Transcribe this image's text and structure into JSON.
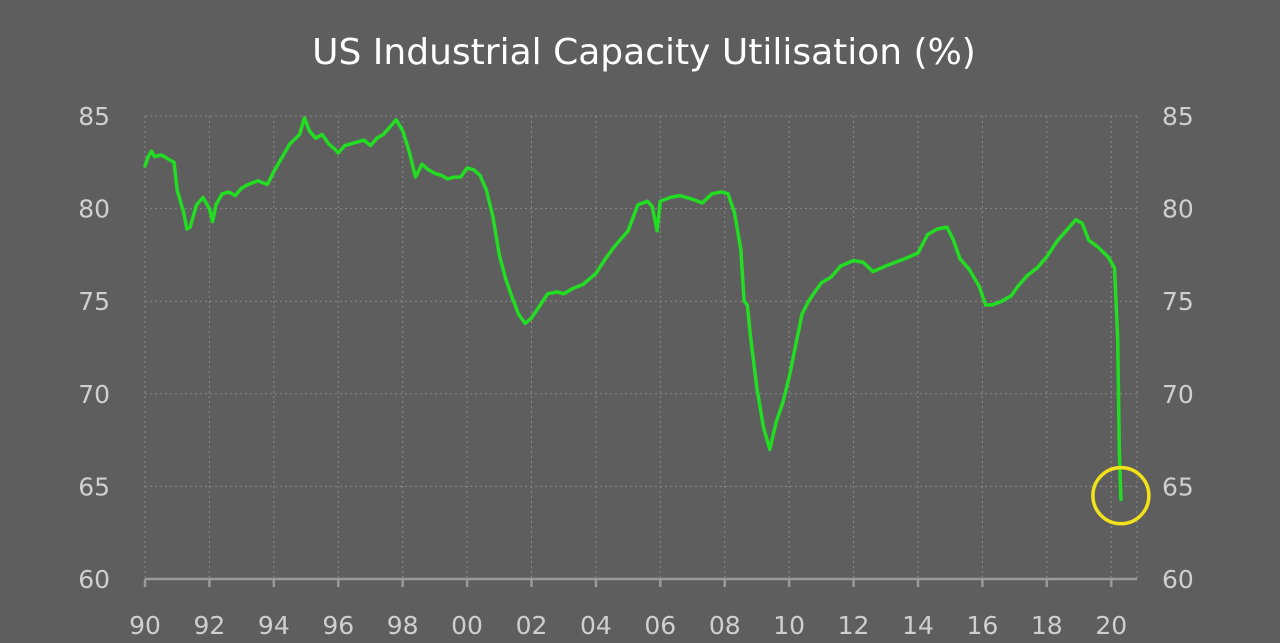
{
  "chart_data": {
    "type": "line",
    "title": "US Industrial Capacity Utilisation (%)",
    "xlabel": "",
    "ylabel": "",
    "xlim": [
      1990,
      2020.8
    ],
    "ylim": [
      60,
      85
    ],
    "x_tick_values": [
      1990,
      1992,
      1994,
      1996,
      1998,
      2000,
      2002,
      2004,
      2006,
      2008,
      2010,
      2012,
      2014,
      2016,
      2018,
      2020
    ],
    "x_tick_labels": [
      "90",
      "92",
      "94",
      "96",
      "98",
      "00",
      "02",
      "04",
      "06",
      "08",
      "10",
      "12",
      "14",
      "16",
      "18",
      "20"
    ],
    "y_ticks": [
      60,
      65,
      70,
      75,
      80,
      85
    ],
    "grid": true,
    "y_axis_labels_both_sides": true,
    "series": [
      {
        "color": "#22dd22",
        "x": [
          1990.0,
          1990.1,
          1990.2,
          1990.3,
          1990.5,
          1990.7,
          1990.9,
          1991.0,
          1991.2,
          1991.3,
          1991.4,
          1991.6,
          1991.8,
          1992.0,
          1992.1,
          1992.2,
          1992.4,
          1992.6,
          1992.8,
          1993.0,
          1993.2,
          1993.5,
          1993.8,
          1994.0,
          1994.2,
          1994.5,
          1994.8,
          1994.95,
          1995.1,
          1995.3,
          1995.5,
          1995.7,
          1995.9,
          1996.0,
          1996.2,
          1996.4,
          1996.6,
          1996.8,
          1997.0,
          1997.2,
          1997.4,
          1997.6,
          1997.8,
          1998.0,
          1998.2,
          1998.4,
          1998.6,
          1998.8,
          1999.0,
          1999.2,
          1999.4,
          1999.6,
          1999.8,
          2000.0,
          2000.2,
          2000.4,
          2000.6,
          2000.8,
          2001.0,
          2001.2,
          2001.4,
          2001.6,
          2001.8,
          2002.0,
          2002.2,
          2002.5,
          2002.8,
          2003.0,
          2003.3,
          2003.6,
          2004.0,
          2004.3,
          2004.6,
          2005.0,
          2005.3,
          2005.6,
          2005.75,
          2005.9,
          2006.0,
          2006.3,
          2006.6,
          2007.0,
          2007.3,
          2007.6,
          2007.9,
          2008.1,
          2008.3,
          2008.5,
          2008.6,
          2008.7,
          2008.8,
          2009.0,
          2009.2,
          2009.4,
          2009.6,
          2009.8,
          2010.0,
          2010.2,
          2010.4,
          2010.6,
          2010.8,
          2011.0,
          2011.3,
          2011.6,
          2012.0,
          2012.3,
          2012.6,
          2013.0,
          2013.3,
          2013.6,
          2014.0,
          2014.3,
          2014.6,
          2014.9,
          2015.1,
          2015.3,
          2015.6,
          2015.9,
          2016.1,
          2016.3,
          2016.6,
          2016.9,
          2017.1,
          2017.4,
          2017.7,
          2018.0,
          2018.3,
          2018.6,
          2018.9,
          2019.1,
          2019.3,
          2019.6,
          2019.9,
          2020.0,
          2020.1,
          2020.2,
          2020.25,
          2020.3
        ],
        "values": [
          82.3,
          82.8,
          83.1,
          82.8,
          82.9,
          82.7,
          82.5,
          81.0,
          79.8,
          78.9,
          79.0,
          80.2,
          80.6,
          80.0,
          79.3,
          80.2,
          80.8,
          80.9,
          80.7,
          81.1,
          81.3,
          81.5,
          81.3,
          82.0,
          82.6,
          83.5,
          84.0,
          84.9,
          84.2,
          83.8,
          84.0,
          83.5,
          83.2,
          83.0,
          83.4,
          83.5,
          83.6,
          83.7,
          83.4,
          83.8,
          84.0,
          84.4,
          84.8,
          84.2,
          83.1,
          81.7,
          82.4,
          82.1,
          81.9,
          81.8,
          81.6,
          81.7,
          81.7,
          82.2,
          82.1,
          81.8,
          81.0,
          79.6,
          77.5,
          76.2,
          75.2,
          74.3,
          73.8,
          74.1,
          74.6,
          75.4,
          75.5,
          75.4,
          75.7,
          75.9,
          76.5,
          77.3,
          78.0,
          78.8,
          80.2,
          80.4,
          80.1,
          78.8,
          80.4,
          80.6,
          80.7,
          80.5,
          80.3,
          80.8,
          80.9,
          80.8,
          79.8,
          77.8,
          75.0,
          74.8,
          73.1,
          70.3,
          68.2,
          67.0,
          68.5,
          69.5,
          70.9,
          72.6,
          74.3,
          75.0,
          75.5,
          76.0,
          76.3,
          76.9,
          77.2,
          77.1,
          76.6,
          76.9,
          77.1,
          77.3,
          77.6,
          78.6,
          78.9,
          79.0,
          78.3,
          77.3,
          76.7,
          75.8,
          74.8,
          74.8,
          75.0,
          75.3,
          75.8,
          76.4,
          76.8,
          77.4,
          78.2,
          78.8,
          79.4,
          79.2,
          78.3,
          77.9,
          77.4,
          77.1,
          76.8,
          73.0,
          67.0,
          64.3
        ]
      }
    ],
    "annotation": {
      "type": "circle",
      "color": "#f2e21a",
      "x": 2020.3,
      "y": 64.5
    }
  }
}
